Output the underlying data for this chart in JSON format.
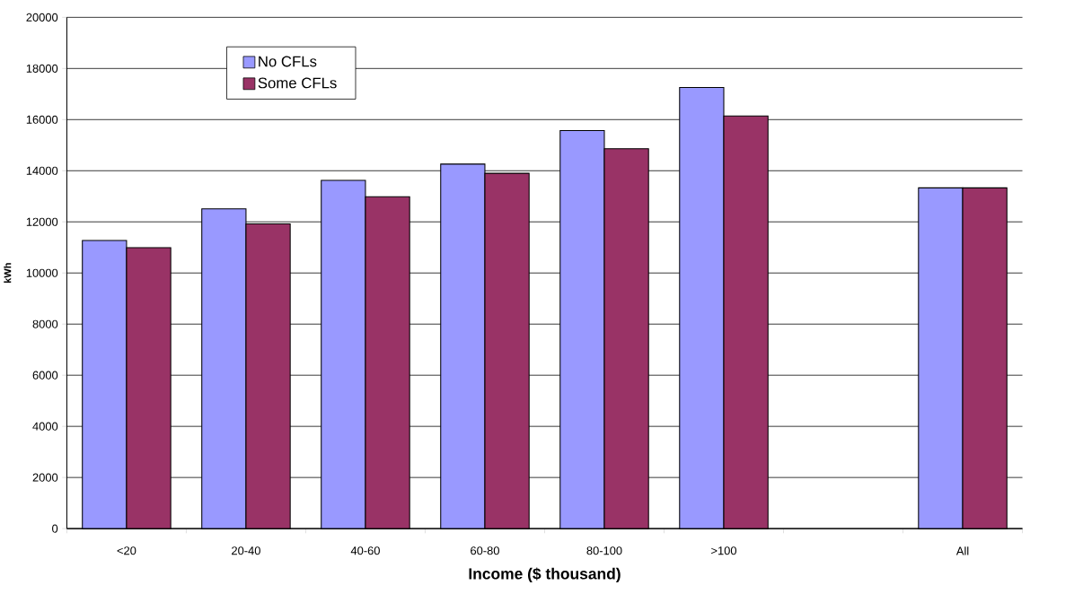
{
  "chart_data": {
    "type": "bar",
    "xlabel": "Income ($ thousand)",
    "ylabel": "kWh",
    "categories": [
      "<20",
      "20-40",
      "40-60",
      "60-80",
      "80-100",
      ">100",
      null,
      "All"
    ],
    "series": [
      {
        "name": "No CFLs",
        "color": "#9999ff",
        "values": [
          11270,
          12510,
          13620,
          14260,
          15570,
          17260,
          null,
          13330
        ]
      },
      {
        "name": "Some CFLs",
        "color": "#993366",
        "values": [
          10990,
          11920,
          12980,
          13900,
          14860,
          16140,
          null,
          13330
        ]
      }
    ],
    "ylim": [
      0,
      20000
    ],
    "yticks": [
      0,
      2000,
      4000,
      6000,
      8000,
      10000,
      12000,
      14000,
      16000,
      18000,
      20000
    ],
    "grid": "y",
    "legend": "top left"
  }
}
